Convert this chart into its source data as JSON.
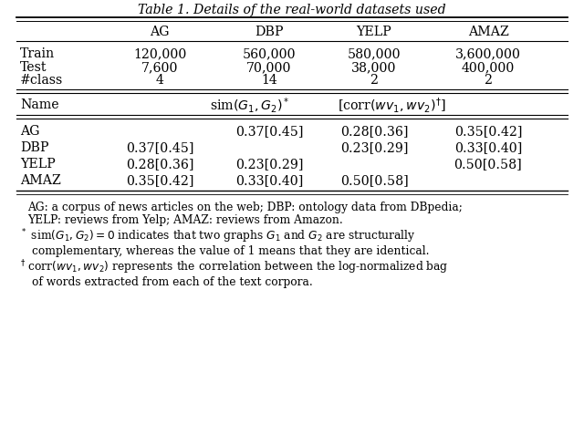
{
  "title": "Table 1. Details of the real-world datasets used",
  "background_color": "#ffffff",
  "figsize": [
    6.4,
    4.88
  ],
  "dpi": 100,
  "col_headers": [
    "AG",
    "DBP",
    "YELP",
    "AMAZ"
  ],
  "top_rows": [
    [
      "Train",
      "120,000",
      "560,000",
      "580,000",
      "3,600,000"
    ],
    [
      "Test",
      "7,600",
      "70,000",
      "38,000",
      "400,000"
    ],
    [
      "#class",
      "4",
      "14",
      "2",
      "2"
    ]
  ],
  "bottom_rows": [
    [
      "AG",
      "",
      "0.37[0.45]",
      "0.28[0.36]",
      "0.35[0.42]"
    ],
    [
      "DBP",
      "0.37[0.45]",
      "",
      "0.23[0.29]",
      "0.33[0.40]"
    ],
    [
      "YELP",
      "0.28[0.36]",
      "0.23[0.29]",
      "",
      "0.50[0.58]"
    ],
    [
      "AMAZ",
      "0.35[0.42]",
      "0.33[0.40]",
      "0.50[0.58]",
      ""
    ]
  ]
}
